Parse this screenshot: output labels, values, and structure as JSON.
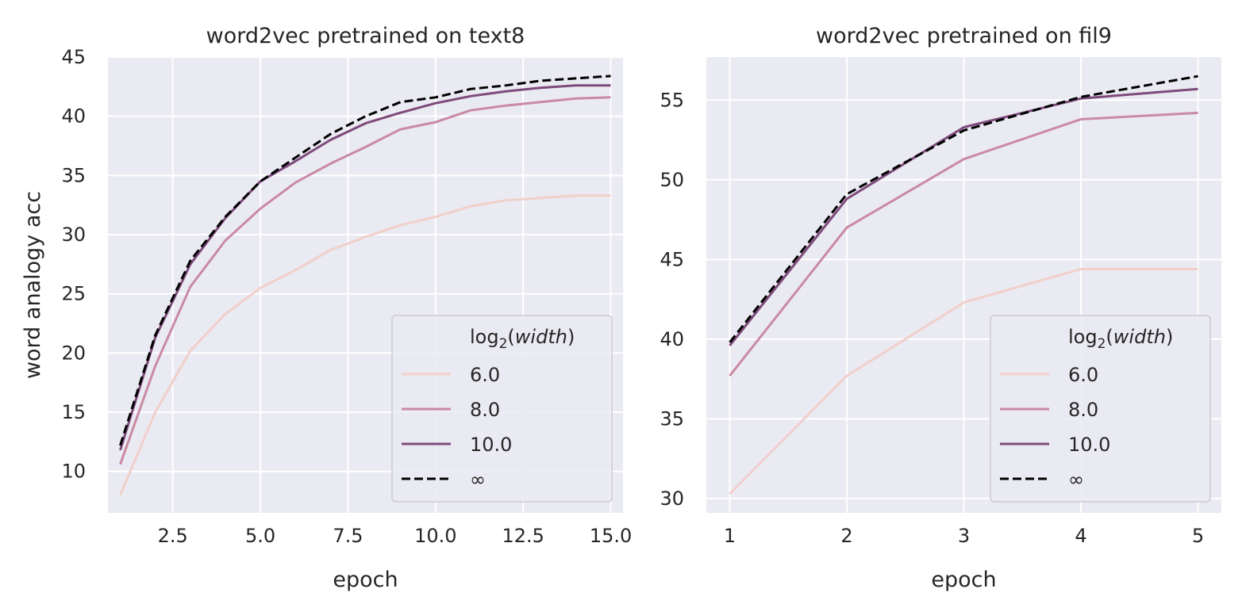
{
  "chart_data": [
    {
      "type": "line",
      "title": "word2vec pretrained on text8",
      "xlabel": "epoch",
      "ylabel": "word analogy acc",
      "xlim": [
        0.65,
        15.35
      ],
      "ylim": [
        6.5,
        45
      ],
      "xticks": [
        2.5,
        5.0,
        7.5,
        10.0,
        12.5,
        15.0
      ],
      "xtick_labels": [
        "2.5",
        "5.0",
        "7.5",
        "10.0",
        "12.5",
        "15.0"
      ],
      "yticks": [
        10,
        15,
        20,
        25,
        30,
        35,
        40,
        45
      ],
      "ytick_labels": [
        "10",
        "15",
        "20",
        "25",
        "30",
        "35",
        "40",
        "45"
      ],
      "grid": true,
      "legend": "lower-right",
      "legend_title": "log",
      "legend_title_sub": "2",
      "legend_title_var": "width",
      "x": [
        1,
        2,
        3,
        4,
        5,
        6,
        7,
        8,
        9,
        10,
        11,
        12,
        13,
        14,
        15
      ],
      "series": [
        {
          "name": "6.0",
          "color": "#f1cfcb",
          "dashed": false,
          "values": [
            8.0,
            15.0,
            20.2,
            23.3,
            25.5,
            27.0,
            28.7,
            29.8,
            30.8,
            31.5,
            32.4,
            32.9,
            33.1,
            33.3,
            33.3
          ]
        },
        {
          "name": "8.0",
          "color": "#c98aa3",
          "dashed": false,
          "values": [
            10.6,
            18.9,
            25.6,
            29.5,
            32.2,
            34.4,
            36.0,
            37.4,
            38.9,
            39.5,
            40.5,
            40.9,
            41.2,
            41.5,
            41.6
          ]
        },
        {
          "name": "10.0",
          "color": "#7e4a7b",
          "dashed": false,
          "values": [
            11.8,
            21.3,
            27.5,
            31.4,
            34.5,
            36.2,
            38.0,
            39.4,
            40.3,
            41.1,
            41.7,
            42.1,
            42.4,
            42.6,
            42.6
          ]
        },
        {
          "name": "∞",
          "color": "#000000",
          "dashed": true,
          "values": [
            12.2,
            21.5,
            27.8,
            31.5,
            34.5,
            36.5,
            38.5,
            40.0,
            41.2,
            41.6,
            42.3,
            42.6,
            43.0,
            43.2,
            43.4
          ]
        }
      ]
    },
    {
      "type": "line",
      "title": "word2vec pretrained on fil9",
      "xlabel": "epoch",
      "ylabel": "",
      "xlim": [
        0.8,
        5.2
      ],
      "ylim": [
        29.1,
        57.7
      ],
      "xticks": [
        1,
        2,
        3,
        4,
        5
      ],
      "xtick_labels": [
        "1",
        "2",
        "3",
        "4",
        "5"
      ],
      "yticks": [
        30,
        35,
        40,
        45,
        50,
        55
      ],
      "ytick_labels": [
        "30",
        "35",
        "40",
        "45",
        "50",
        "55"
      ],
      "grid": true,
      "legend": "lower-right",
      "legend_title": "log",
      "legend_title_sub": "2",
      "legend_title_var": "width",
      "x": [
        1,
        2,
        3,
        4,
        5
      ],
      "series": [
        {
          "name": "6.0",
          "color": "#f1cfcb",
          "dashed": false,
          "values": [
            30.3,
            37.7,
            42.3,
            44.4,
            44.4
          ]
        },
        {
          "name": "8.0",
          "color": "#c98aa3",
          "dashed": false,
          "values": [
            37.7,
            47.0,
            51.3,
            53.8,
            54.2
          ]
        },
        {
          "name": "10.0",
          "color": "#7e4a7b",
          "dashed": false,
          "values": [
            39.6,
            48.8,
            53.3,
            55.1,
            55.7
          ]
        },
        {
          "name": "∞",
          "color": "#000000",
          "dashed": true,
          "values": [
            39.8,
            49.1,
            53.1,
            55.2,
            56.5
          ]
        }
      ]
    }
  ]
}
